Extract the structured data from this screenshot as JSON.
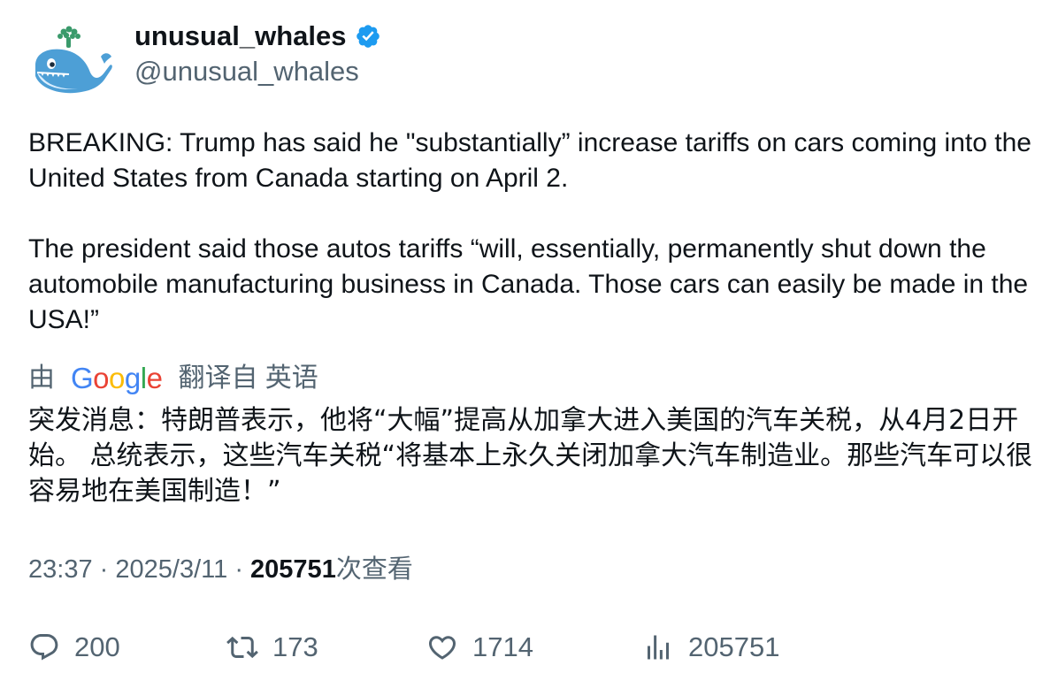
{
  "user": {
    "display_name": "unusual_whales",
    "handle": "@unusual_whales",
    "verified": true,
    "verified_color": "#1d9bf0"
  },
  "tweet": {
    "paragraphs": [
      "BREAKING: Trump has said he \"substantially” increase tariffs on cars coming into the United States from Canada starting on April 2.",
      "The president said those autos tariffs “will, essentially, permanently shut down the automobile manufacturing business in Canada. Those cars can easily be made in the USA!”"
    ]
  },
  "translation": {
    "prefix": "由",
    "provider": "Google",
    "suffix": "翻译自 英语",
    "text": "突发消息：特朗普表示，他将“大幅”提高从加拿大进入美国的汽车关税，从4月2日开始。 总统表示，这些汽车关税“将基本上永久关闭加拿大汽车制造业。那些汽车可以很容易地在美国制造！”"
  },
  "meta": {
    "time": "23:37",
    "separator": "·",
    "date": "2025/3/11",
    "views": "205751",
    "views_label": "次查看"
  },
  "actions": {
    "replies": "200",
    "retweets": "173",
    "likes": "1714",
    "views": "205751"
  },
  "colors": {
    "text_primary": "#0f1419",
    "text_secondary": "#536471",
    "google_blue": "#4285F4",
    "google_red": "#EA4335",
    "google_yellow": "#FBBC05",
    "google_green": "#34A853"
  }
}
